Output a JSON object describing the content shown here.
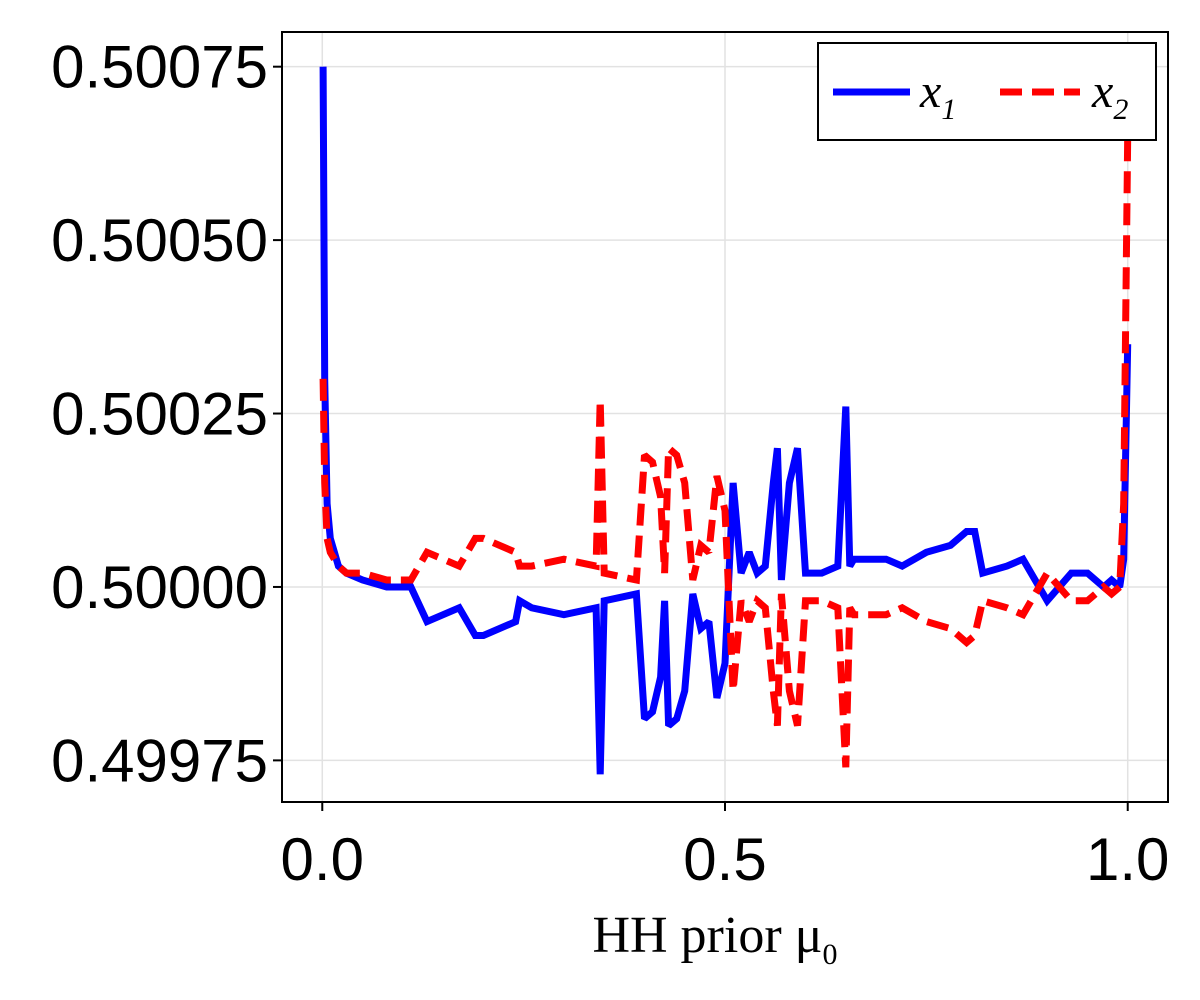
{
  "chart_data": {
    "type": "line",
    "title": "",
    "xlabel": "HH prior μ",
    "xlabel_sub": "0",
    "ylabel": "",
    "xlim": [
      -0.05,
      1.05
    ],
    "ylim": [
      0.49969,
      0.5008
    ],
    "xticks": [
      0.0,
      0.5,
      1.0
    ],
    "xtick_labels": [
      "0.0",
      "0.5",
      "1.0"
    ],
    "yticks": [
      0.49975,
      0.5,
      0.50025,
      0.5005,
      0.50075
    ],
    "ytick_labels": [
      "0.49975",
      "0.50000",
      "0.50025",
      "0.50050",
      "0.50075"
    ],
    "grid": true,
    "legend_position": "top-right",
    "colors": {
      "x1": "#0000ff",
      "x2": "#ff0000",
      "grid": "#e2e2e2"
    },
    "series": [
      {
        "name": "x",
        "subscript": "1",
        "style": "solid",
        "color": "#0000ff",
        "x": [
          0.001,
          0.003,
          0.006,
          0.01,
          0.015,
          0.02,
          0.03,
          0.05,
          0.08,
          0.11,
          0.13,
          0.15,
          0.17,
          0.19,
          0.2,
          0.24,
          0.245,
          0.26,
          0.3,
          0.34,
          0.345,
          0.35,
          0.39,
          0.4,
          0.41,
          0.42,
          0.425,
          0.43,
          0.44,
          0.45,
          0.46,
          0.47,
          0.48,
          0.49,
          0.5,
          0.51,
          0.52,
          0.53,
          0.54,
          0.55,
          0.56,
          0.565,
          0.57,
          0.58,
          0.59,
          0.6,
          0.62,
          0.64,
          0.65,
          0.655,
          0.66,
          0.7,
          0.72,
          0.75,
          0.78,
          0.8,
          0.81,
          0.82,
          0.85,
          0.87,
          0.9,
          0.93,
          0.95,
          0.97,
          0.98,
          0.99,
          0.995,
          1.0
        ],
        "y": [
          0.50075,
          0.5003,
          0.50012,
          0.50007,
          0.50005,
          0.50003,
          0.50002,
          0.50001,
          0.5,
          0.5,
          0.49995,
          0.49996,
          0.49997,
          0.49993,
          0.49993,
          0.49995,
          0.49998,
          0.49997,
          0.49996,
          0.49997,
          0.49973,
          0.49998,
          0.49999,
          0.49981,
          0.49982,
          0.49987,
          0.49998,
          0.4998,
          0.49981,
          0.49985,
          0.49999,
          0.49994,
          0.49995,
          0.49984,
          0.49989,
          0.50015,
          0.50002,
          0.50005,
          0.50002,
          0.50003,
          0.50015,
          0.5002,
          0.50001,
          0.50015,
          0.5002,
          0.50002,
          0.50002,
          0.50003,
          0.50026,
          0.50003,
          0.50004,
          0.50004,
          0.50003,
          0.50005,
          0.50006,
          0.50008,
          0.50008,
          0.50002,
          0.50003,
          0.50004,
          0.49998,
          0.50002,
          0.50002,
          0.5,
          0.50001,
          0.5,
          0.50004,
          0.50035
        ]
      },
      {
        "name": "x",
        "subscript": "2",
        "style": "dashed",
        "color": "#ff0000",
        "x": [
          0.001,
          0.003,
          0.006,
          0.01,
          0.015,
          0.02,
          0.03,
          0.05,
          0.08,
          0.11,
          0.13,
          0.15,
          0.17,
          0.19,
          0.2,
          0.24,
          0.245,
          0.26,
          0.3,
          0.34,
          0.345,
          0.35,
          0.39,
          0.4,
          0.41,
          0.42,
          0.425,
          0.43,
          0.44,
          0.45,
          0.46,
          0.47,
          0.48,
          0.49,
          0.5,
          0.51,
          0.52,
          0.53,
          0.54,
          0.55,
          0.56,
          0.565,
          0.57,
          0.58,
          0.59,
          0.6,
          0.62,
          0.64,
          0.65,
          0.655,
          0.66,
          0.7,
          0.72,
          0.75,
          0.78,
          0.8,
          0.81,
          0.82,
          0.85,
          0.87,
          0.9,
          0.93,
          0.95,
          0.97,
          0.98,
          0.99,
          0.995,
          1.0
        ],
        "y": [
          0.5003,
          0.50015,
          0.50007,
          0.50005,
          0.50004,
          0.50003,
          0.50002,
          0.50002,
          0.50001,
          0.50001,
          0.50005,
          0.50004,
          0.50003,
          0.50007,
          0.50007,
          0.50005,
          0.50003,
          0.50003,
          0.50004,
          0.50003,
          0.50027,
          0.50002,
          0.50001,
          0.50019,
          0.50018,
          0.50013,
          0.50002,
          0.5002,
          0.50019,
          0.50015,
          0.50001,
          0.50006,
          0.50005,
          0.50016,
          0.50011,
          0.49985,
          0.49998,
          0.49995,
          0.49998,
          0.49997,
          0.49985,
          0.4998,
          0.49999,
          0.49985,
          0.4998,
          0.49998,
          0.49998,
          0.49997,
          0.49974,
          0.49997,
          0.49996,
          0.49996,
          0.49997,
          0.49995,
          0.49994,
          0.49992,
          0.49993,
          0.49998,
          0.49997,
          0.49996,
          0.50002,
          0.49998,
          0.49998,
          0.5,
          0.49999,
          0.5,
          0.50012,
          0.50065
        ]
      }
    ]
  }
}
